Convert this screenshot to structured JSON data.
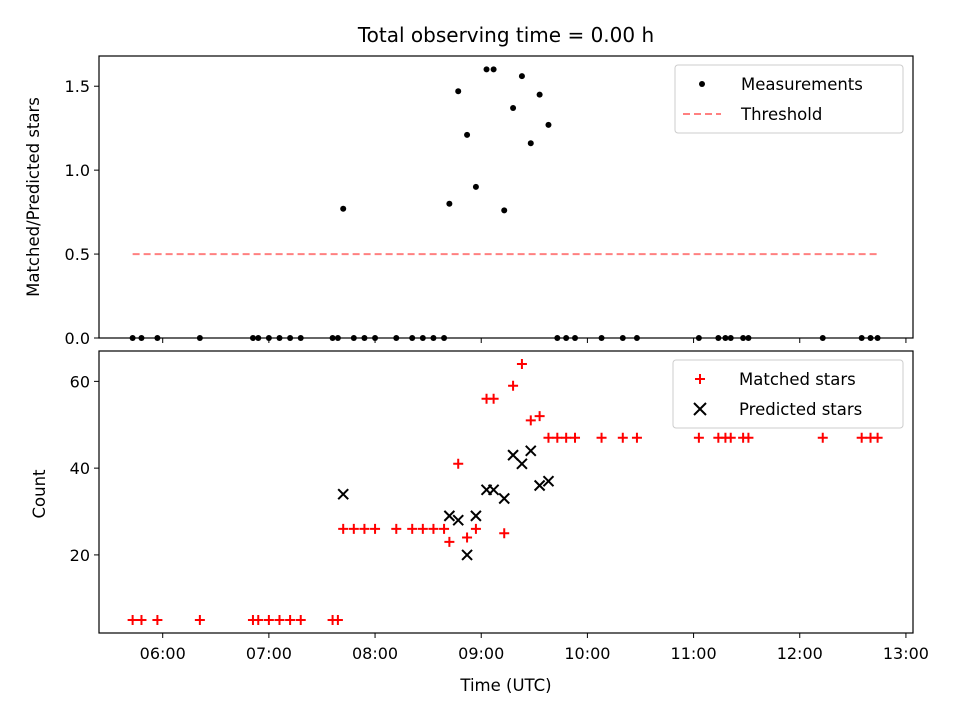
{
  "chart_data": {
    "type": "scatter",
    "title": "Total observing time = 0.00 h",
    "xlabel": "Time (UTC)",
    "x_tick_labels": [
      "06:00",
      "07:00",
      "08:00",
      "09:00",
      "10:00",
      "11:00",
      "12:00",
      "13:00"
    ],
    "x_ticks": [
      "06:00",
      "07:00",
      "08:00",
      "09:00",
      "10:00",
      "11:00",
      "12:00",
      "13:00"
    ],
    "xlim": [
      "05:24",
      "13:04"
    ],
    "panels": [
      {
        "ylabel": "Matched/Predicted stars",
        "ylim": [
          0,
          1.68
        ],
        "yticks": [
          0.0,
          0.5,
          1.0,
          1.5
        ],
        "ytick_labels": [
          "0.0",
          "0.5",
          "1.0",
          "1.5"
        ],
        "legend_position": "top-right",
        "series": [
          {
            "name": "Measurements",
            "kind": "scatter",
            "color": "#000000",
            "marker": "dot",
            "points": [
              [
                "05:43",
                0
              ],
              [
                "05:48",
                0
              ],
              [
                "05:57",
                0
              ],
              [
                "06:21",
                0
              ],
              [
                "06:51",
                0
              ],
              [
                "06:54",
                0
              ],
              [
                "07:00",
                0
              ],
              [
                "07:06",
                0
              ],
              [
                "07:12",
                0
              ],
              [
                "07:18",
                0
              ],
              [
                "07:36",
                0
              ],
              [
                "07:39",
                0
              ],
              [
                "07:42",
                0.77
              ],
              [
                "07:48",
                0
              ],
              [
                "07:54",
                0
              ],
              [
                "08:00",
                0
              ],
              [
                "08:12",
                0
              ],
              [
                "08:21",
                0
              ],
              [
                "08:27",
                0
              ],
              [
                "08:33",
                0
              ],
              [
                "08:39",
                0
              ],
              [
                "08:42",
                0.8
              ],
              [
                "08:47",
                1.47
              ],
              [
                "08:52",
                1.21
              ],
              [
                "08:57",
                0.9
              ],
              [
                "09:03",
                1.6
              ],
              [
                "09:07",
                1.6
              ],
              [
                "09:13",
                0.76
              ],
              [
                "09:18",
                1.37
              ],
              [
                "09:23",
                1.56
              ],
              [
                "09:28",
                1.16
              ],
              [
                "09:33",
                1.45
              ],
              [
                "09:38",
                1.27
              ],
              [
                "09:43",
                0
              ],
              [
                "09:48",
                0
              ],
              [
                "09:53",
                0
              ],
              [
                "10:08",
                0
              ],
              [
                "10:20",
                0
              ],
              [
                "10:28",
                0
              ],
              [
                "11:03",
                0
              ],
              [
                "11:14",
                0
              ],
              [
                "11:18",
                0
              ],
              [
                "11:21",
                0
              ],
              [
                "11:28",
                0
              ],
              [
                "11:31",
                0
              ],
              [
                "12:13",
                0
              ],
              [
                "12:35",
                0
              ],
              [
                "12:40",
                0
              ],
              [
                "12:44",
                0
              ]
            ]
          },
          {
            "name": "Threshold",
            "kind": "line",
            "color": "#ff8080",
            "dashed": true,
            "points": [
              [
                "05:43",
                0.5
              ],
              [
                "12:44",
                0.5
              ]
            ]
          }
        ]
      },
      {
        "ylabel": "Count",
        "ylim": [
          2,
          67
        ],
        "yticks": [
          20,
          40,
          60
        ],
        "ytick_labels": [
          "20",
          "40",
          "60"
        ],
        "legend_position": "top-right",
        "series": [
          {
            "name": "Matched stars",
            "kind": "scatter",
            "color": "#ff0000",
            "marker": "plus",
            "points": [
              [
                "05:43",
                5
              ],
              [
                "05:48",
                5
              ],
              [
                "05:57",
                5
              ],
              [
                "06:21",
                5
              ],
              [
                "06:51",
                5
              ],
              [
                "06:54",
                5
              ],
              [
                "07:00",
                5
              ],
              [
                "07:06",
                5
              ],
              [
                "07:12",
                5
              ],
              [
                "07:18",
                5
              ],
              [
                "07:36",
                5
              ],
              [
                "07:39",
                5
              ],
              [
                "07:42",
                26
              ],
              [
                "07:48",
                26
              ],
              [
                "07:54",
                26
              ],
              [
                "08:00",
                26
              ],
              [
                "08:12",
                26
              ],
              [
                "08:21",
                26
              ],
              [
                "08:27",
                26
              ],
              [
                "08:33",
                26
              ],
              [
                "08:39",
                26
              ],
              [
                "08:42",
                23
              ],
              [
                "08:47",
                41
              ],
              [
                "08:52",
                24
              ],
              [
                "08:57",
                26
              ],
              [
                "09:03",
                56
              ],
              [
                "09:07",
                56
              ],
              [
                "09:13",
                25
              ],
              [
                "09:18",
                59
              ],
              [
                "09:23",
                64
              ],
              [
                "09:28",
                51
              ],
              [
                "09:33",
                52
              ],
              [
                "09:38",
                47
              ],
              [
                "09:43",
                47
              ],
              [
                "09:48",
                47
              ],
              [
                "09:53",
                47
              ],
              [
                "10:08",
                47
              ],
              [
                "10:20",
                47
              ],
              [
                "10:28",
                47
              ],
              [
                "11:03",
                47
              ],
              [
                "11:14",
                47
              ],
              [
                "11:18",
                47
              ],
              [
                "11:21",
                47
              ],
              [
                "11:28",
                47
              ],
              [
                "11:31",
                47
              ],
              [
                "12:13",
                47
              ],
              [
                "12:35",
                47
              ],
              [
                "12:40",
                47
              ],
              [
                "12:44",
                47
              ]
            ]
          },
          {
            "name": "Predicted stars",
            "kind": "scatter",
            "color": "#000000",
            "marker": "x",
            "points": [
              [
                "07:42",
                34
              ],
              [
                "08:42",
                29
              ],
              [
                "08:47",
                28
              ],
              [
                "08:52",
                20
              ],
              [
                "08:57",
                29
              ],
              [
                "09:03",
                35
              ],
              [
                "09:07",
                35
              ],
              [
                "09:13",
                33
              ],
              [
                "09:18",
                43
              ],
              [
                "09:23",
                41
              ],
              [
                "09:28",
                44
              ],
              [
                "09:33",
                36
              ],
              [
                "09:38",
                37
              ]
            ]
          }
        ]
      }
    ]
  }
}
